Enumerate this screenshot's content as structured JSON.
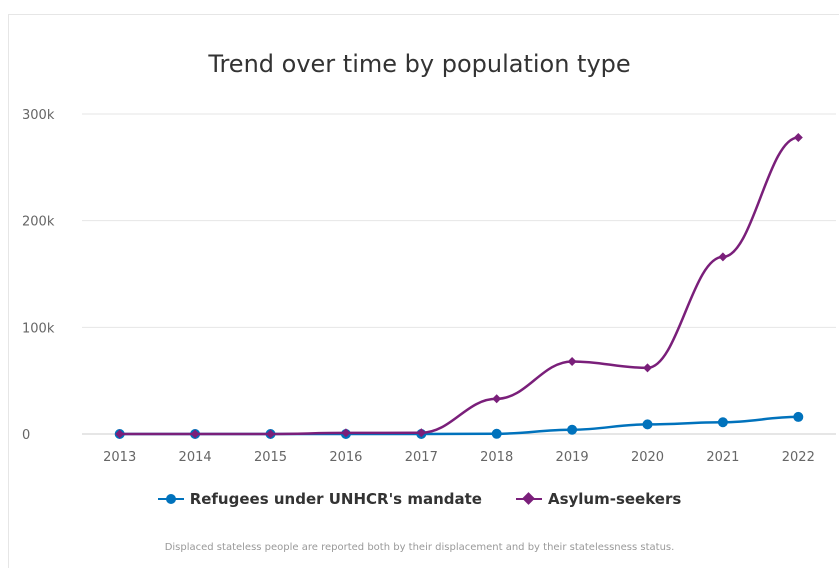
{
  "chart_data": {
    "type": "line",
    "title": "Trend over time by population type",
    "xlabel": "",
    "ylabel": "",
    "x": [
      "2013",
      "2014",
      "2015",
      "2016",
      "2017",
      "2018",
      "2019",
      "2020",
      "2021",
      "2022"
    ],
    "ylim": [
      0,
      300000
    ],
    "y_ticks": [
      {
        "value": 0,
        "label": "0"
      },
      {
        "value": 100000,
        "label": "100k"
      },
      {
        "value": 200000,
        "label": "200k"
      },
      {
        "value": 300000,
        "label": "300k"
      }
    ],
    "grid": true,
    "legend": "bottom",
    "series": [
      {
        "name": "Refugees under UNHCR's mandate",
        "color": "#0072BC",
        "marker": "circle",
        "values": [
          0,
          0,
          0,
          0,
          0,
          200,
          4000,
          9000,
          11000,
          16000
        ]
      },
      {
        "name": "Asylum-seekers",
        "color": "#7A1F7A",
        "marker": "diamond",
        "values": [
          0,
          0,
          0,
          1000,
          1200,
          33000,
          68000,
          62000,
          166000,
          278000
        ]
      }
    ],
    "footnote": "Displaced stateless people are reported both by their displacement and by their statelessness status."
  }
}
